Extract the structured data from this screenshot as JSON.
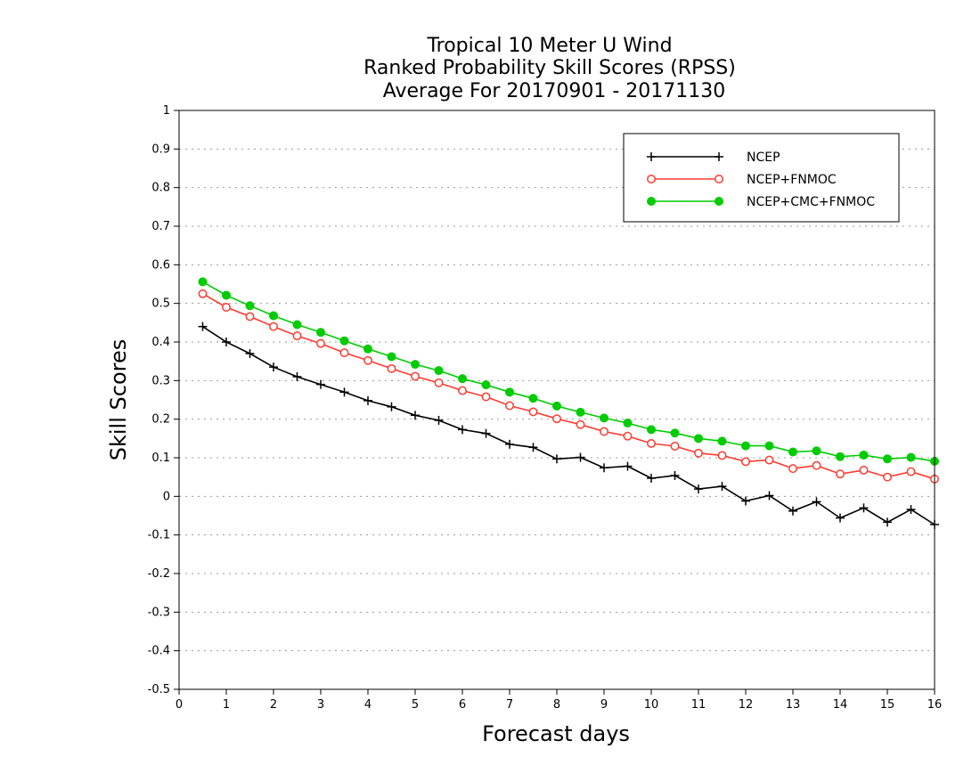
{
  "chart_data": {
    "type": "line",
    "title_lines": [
      "Tropical 10 Meter U Wind",
      "Ranked Probability Skill Scores (RPSS)",
      "Average For 20170901 - 20171130"
    ],
    "xlabel": "Forecast days",
    "ylabel": "Skill Scores",
    "xlim": [
      0,
      16
    ],
    "ylim": [
      -0.5,
      1
    ],
    "x_ticks": [
      0,
      1,
      2,
      3,
      4,
      5,
      6,
      7,
      8,
      9,
      10,
      11,
      12,
      13,
      14,
      15,
      16
    ],
    "y_ticks": [
      -0.5,
      -0.4,
      -0.3,
      -0.2,
      -0.1,
      0,
      0.1,
      0.2,
      0.3,
      0.4,
      0.5,
      0.6,
      0.7,
      0.8,
      0.9,
      1
    ],
    "y_tick_labels": [
      "-0.5",
      "-0.4",
      "-0.3",
      "-0.2",
      "-0.1",
      "0",
      "0.1",
      "0.2",
      "0.3",
      "0.4",
      "0.5",
      "0.6",
      "0.7",
      "0.8",
      "0.9",
      "1"
    ],
    "grid": "horizontal dotted",
    "legend_position": "top-right",
    "x": [
      0.5,
      1,
      1.5,
      2,
      2.5,
      3,
      3.5,
      4,
      4.5,
      5,
      5.5,
      6,
      6.5,
      7,
      7.5,
      8,
      8.5,
      9,
      9.5,
      10,
      10.5,
      11,
      11.5,
      12,
      12.5,
      13,
      13.5,
      14,
      14.5,
      15,
      15.5,
      16
    ],
    "series": [
      {
        "name": "NCEP",
        "color": "#000000",
        "marker": "plus",
        "values": [
          0.44,
          0.4,
          0.37,
          0.335,
          0.31,
          0.29,
          0.27,
          0.248,
          0.232,
          0.21,
          0.197,
          0.173,
          0.163,
          0.135,
          0.127,
          0.097,
          0.101,
          0.074,
          0.078,
          0.047,
          0.054,
          0.019,
          0.026,
          -0.012,
          0.002,
          -0.038,
          -0.014,
          -0.056,
          -0.03,
          -0.067,
          -0.034,
          -0.073
        ]
      },
      {
        "name": "NCEP+FNMOC",
        "color": "#ff3b30",
        "marker": "open-circle",
        "values": [
          0.525,
          0.49,
          0.466,
          0.44,
          0.416,
          0.396,
          0.372,
          0.352,
          0.331,
          0.311,
          0.294,
          0.274,
          0.258,
          0.235,
          0.219,
          0.201,
          0.186,
          0.168,
          0.156,
          0.137,
          0.13,
          0.112,
          0.106,
          0.09,
          0.094,
          0.072,
          0.08,
          0.058,
          0.068,
          0.05,
          0.064,
          0.045
        ]
      },
      {
        "name": "NCEP+CMC+FNMOC",
        "color": "#00cc00",
        "marker": "filled-circle",
        "values": [
          0.556,
          0.521,
          0.494,
          0.468,
          0.445,
          0.425,
          0.403,
          0.382,
          0.362,
          0.342,
          0.326,
          0.305,
          0.289,
          0.27,
          0.254,
          0.234,
          0.218,
          0.203,
          0.19,
          0.173,
          0.164,
          0.15,
          0.143,
          0.131,
          0.131,
          0.115,
          0.118,
          0.103,
          0.107,
          0.097,
          0.101,
          0.091
        ]
      }
    ]
  }
}
